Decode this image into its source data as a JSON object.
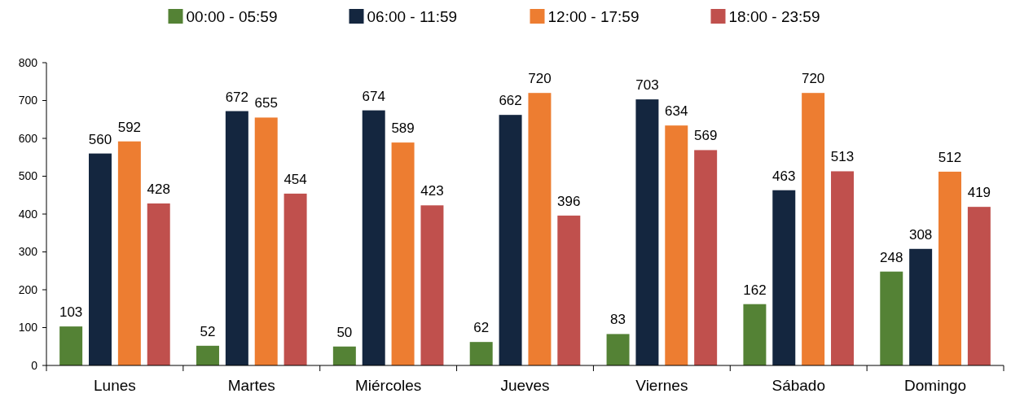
{
  "chart_data": {
    "type": "bar",
    "categories": [
      "Lunes",
      "Martes",
      "Miércoles",
      "Jueves",
      "Viernes",
      "Sábado",
      "Domingo"
    ],
    "series": [
      {
        "name": "00:00 - 05:59",
        "color": "#548235",
        "values": [
          103,
          52,
          50,
          62,
          83,
          162,
          248
        ]
      },
      {
        "name": "06:00 - 11:59",
        "color": "#14263f",
        "values": [
          560,
          672,
          674,
          662,
          703,
          463,
          308
        ]
      },
      {
        "name": "12:00 - 17:59",
        "color": "#ed7d31",
        "values": [
          592,
          655,
          589,
          720,
          634,
          720,
          512
        ]
      },
      {
        "name": "18:00 - 23:59",
        "color": "#c0504d",
        "values": [
          428,
          454,
          423,
          396,
          569,
          513,
          419
        ]
      }
    ],
    "ylim": [
      0,
      800
    ],
    "yticks": [
      0,
      100,
      200,
      300,
      400,
      500,
      600,
      700,
      800
    ],
    "data_labels": true,
    "legend": "top",
    "grid": false
  }
}
